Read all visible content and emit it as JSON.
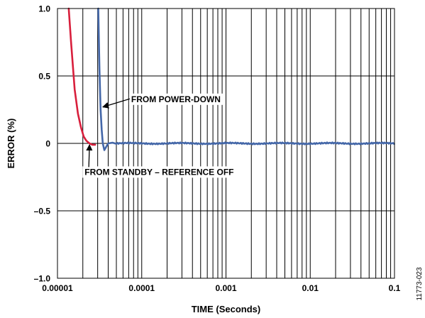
{
  "chart_data": {
    "type": "line",
    "xlabel": "TIME (Seconds)",
    "ylabel": "ERROR (%)",
    "x_scale": "log",
    "xlim": [
      1e-05,
      0.1
    ],
    "ylim": [
      -1.0,
      1.0
    ],
    "x_ticks": [
      1e-05,
      0.0001,
      0.001,
      0.01,
      0.1
    ],
    "x_tick_labels": [
      "0.00001",
      "0.0001",
      "0.001",
      "0.01",
      "0.1"
    ],
    "y_ticks": [
      1.0,
      0.5,
      0,
      -0.5,
      -1.0
    ],
    "y_tick_labels": [
      "1.0",
      "0.5",
      "0",
      "–0.5",
      "–1.0"
    ],
    "grid": true,
    "series": [
      {
        "color": "#d81f3c",
        "x": [
          1.36e-05,
          1.45e-05,
          1.6e-05,
          1.75e-05,
          1.9e-05,
          2.05e-05,
          2.2e-05,
          2.4e-05,
          2.6e-05,
          2.8e-05
        ],
        "y": [
          1.0,
          0.75,
          0.4,
          0.22,
          0.12,
          0.05,
          0.02,
          0.0,
          -0.01,
          -0.01
        ]
      },
      {
        "color": "#4467a8",
        "x": [
          3.05e-05,
          3.15e-05,
          3.25e-05,
          3.35e-05,
          3.45e-05,
          3.6e-05,
          3.75e-05,
          4e-05,
          4.5e-05,
          5e-05,
          6e-05,
          0.0001,
          0.0002,
          0.0005,
          0.001,
          0.002,
          0.005,
          0.01,
          0.02,
          0.05,
          0.1
        ],
        "y": [
          1.0,
          0.55,
          0.25,
          0.1,
          0.0,
          -0.05,
          -0.03,
          0.0,
          0.005,
          0.0,
          0.0,
          0.0,
          0.0,
          0.0,
          0.0,
          0.0,
          0.0,
          0.0,
          0.0,
          0.0,
          0.0
        ]
      }
    ],
    "annotations": [
      {
        "text": "FROM POWER-DOWN",
        "x": 7.5e-05,
        "y": 0.33,
        "arrow_to": [
          3.45e-05,
          0.27
        ]
      },
      {
        "text": "FROM STANDBY – REFERENCE OFF",
        "x": 2.1e-05,
        "y": -0.21,
        "arrow_to": [
          2.4e-05,
          -0.01
        ]
      }
    ],
    "figure_id": "11773-023"
  }
}
